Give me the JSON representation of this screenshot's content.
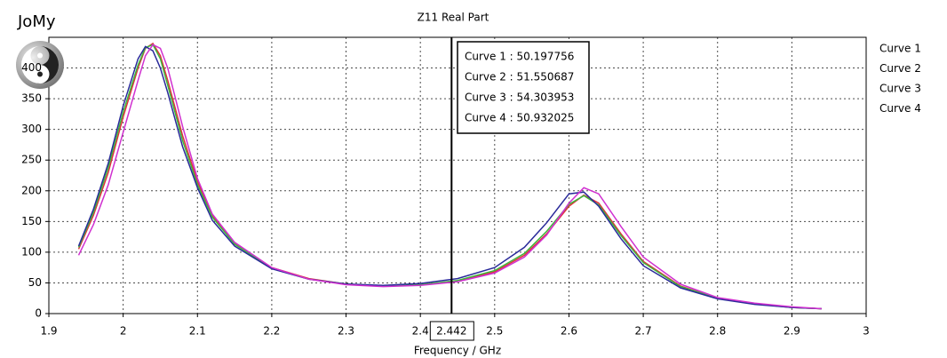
{
  "logo_text": "JoMy",
  "chart_data": {
    "type": "line",
    "title": "Z11 Real Part",
    "x_label": "Frequency / GHz",
    "x": [
      1.94,
      1.96,
      1.98,
      2.0,
      2.02,
      2.03,
      2.04,
      2.05,
      2.06,
      2.08,
      2.1,
      2.12,
      2.15,
      2.2,
      2.25,
      2.3,
      2.35,
      2.4,
      2.45,
      2.5,
      2.54,
      2.57,
      2.6,
      2.62,
      2.64,
      2.67,
      2.7,
      2.75,
      2.8,
      2.85,
      2.9,
      2.94
    ],
    "series": [
      {
        "name": "Curve 1",
        "color": "#e0303a",
        "values": [
          105,
          160,
          230,
          320,
          400,
          432,
          440,
          420,
          380,
          290,
          215,
          160,
          115,
          75,
          57,
          48,
          45,
          47,
          53,
          68,
          95,
          130,
          175,
          193,
          180,
          130,
          85,
          45,
          25,
          16,
          10,
          8
        ]
      },
      {
        "name": "Curve 2",
        "color": "#3cb83c",
        "values": [
          108,
          165,
          238,
          328,
          405,
          433,
          438,
          415,
          372,
          282,
          210,
          157,
          113,
          74,
          56,
          48,
          45,
          47,
          54,
          70,
          98,
          134,
          178,
          192,
          177,
          127,
          83,
          44,
          25,
          16,
          10,
          8
        ]
      },
      {
        "name": "Curve 3",
        "color": "#2a2a9a",
        "values": [
          110,
          170,
          245,
          338,
          415,
          435,
          428,
          400,
          360,
          272,
          205,
          152,
          110,
          73,
          56,
          48,
          46,
          49,
          57,
          75,
          108,
          148,
          195,
          198,
          175,
          122,
          78,
          42,
          24,
          15,
          10,
          8
        ]
      },
      {
        "name": "Curve 4",
        "color": "#d030d0",
        "values": [
          95,
          145,
          210,
          295,
          380,
          420,
          438,
          432,
          400,
          305,
          220,
          162,
          116,
          75,
          56,
          47,
          44,
          46,
          52,
          66,
          92,
          128,
          180,
          205,
          195,
          142,
          92,
          48,
          26,
          17,
          11,
          8
        ]
      }
    ],
    "xlim": [
      1.9,
      3
    ],
    "xticks": [
      1.9,
      2,
      2.1,
      2.2,
      2.3,
      2.4,
      2.5,
      2.6,
      2.7,
      2.8,
      2.9,
      3
    ],
    "ylim": [
      0,
      450
    ],
    "yticks": [
      0,
      50,
      100,
      150,
      200,
      250,
      300,
      350,
      400
    ],
    "grid": true,
    "cursor": 2.442,
    "readouts": [
      "Curve 1 : 50.197756",
      "Curve 2 : 51.550687",
      "Curve 3 : 54.303953",
      "Curve 4 : 50.932025"
    ],
    "legend": "right"
  }
}
